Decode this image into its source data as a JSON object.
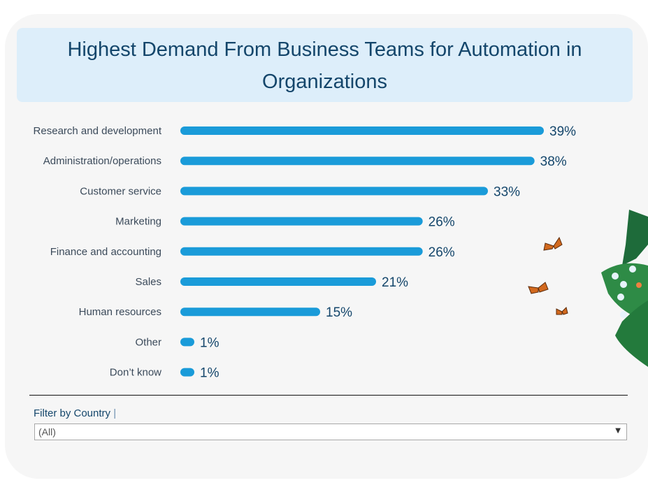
{
  "title": "Highest Demand From Business Teams for Automation in Organizations",
  "chart_data": {
    "type": "bar",
    "orientation": "horizontal",
    "title": "Highest Demand From Business Teams for Automation in Organizations",
    "categories": [
      "Research and development",
      "Administration/operations",
      "Customer service",
      "Marketing",
      "Finance and accounting",
      "Sales",
      "Human resources",
      "Other",
      "Don’t know"
    ],
    "values": [
      39,
      38,
      33,
      26,
      26,
      21,
      15,
      1,
      1
    ],
    "labels": [
      "39%",
      "38%",
      "33%",
      "26%",
      "26%",
      "21%",
      "15%",
      "1%",
      "1%"
    ],
    "xlabel": "",
    "ylabel": "",
    "xlim": [
      0,
      40
    ],
    "grid": false,
    "bar_color": "#1a9bd9",
    "label_color": "#14466b"
  },
  "filter": {
    "label": "Filter by Country",
    "value": "(All)"
  },
  "colors": {
    "background": "#f6f6f6",
    "title_bg": "#ddeefa",
    "title_text": "#14466b"
  }
}
